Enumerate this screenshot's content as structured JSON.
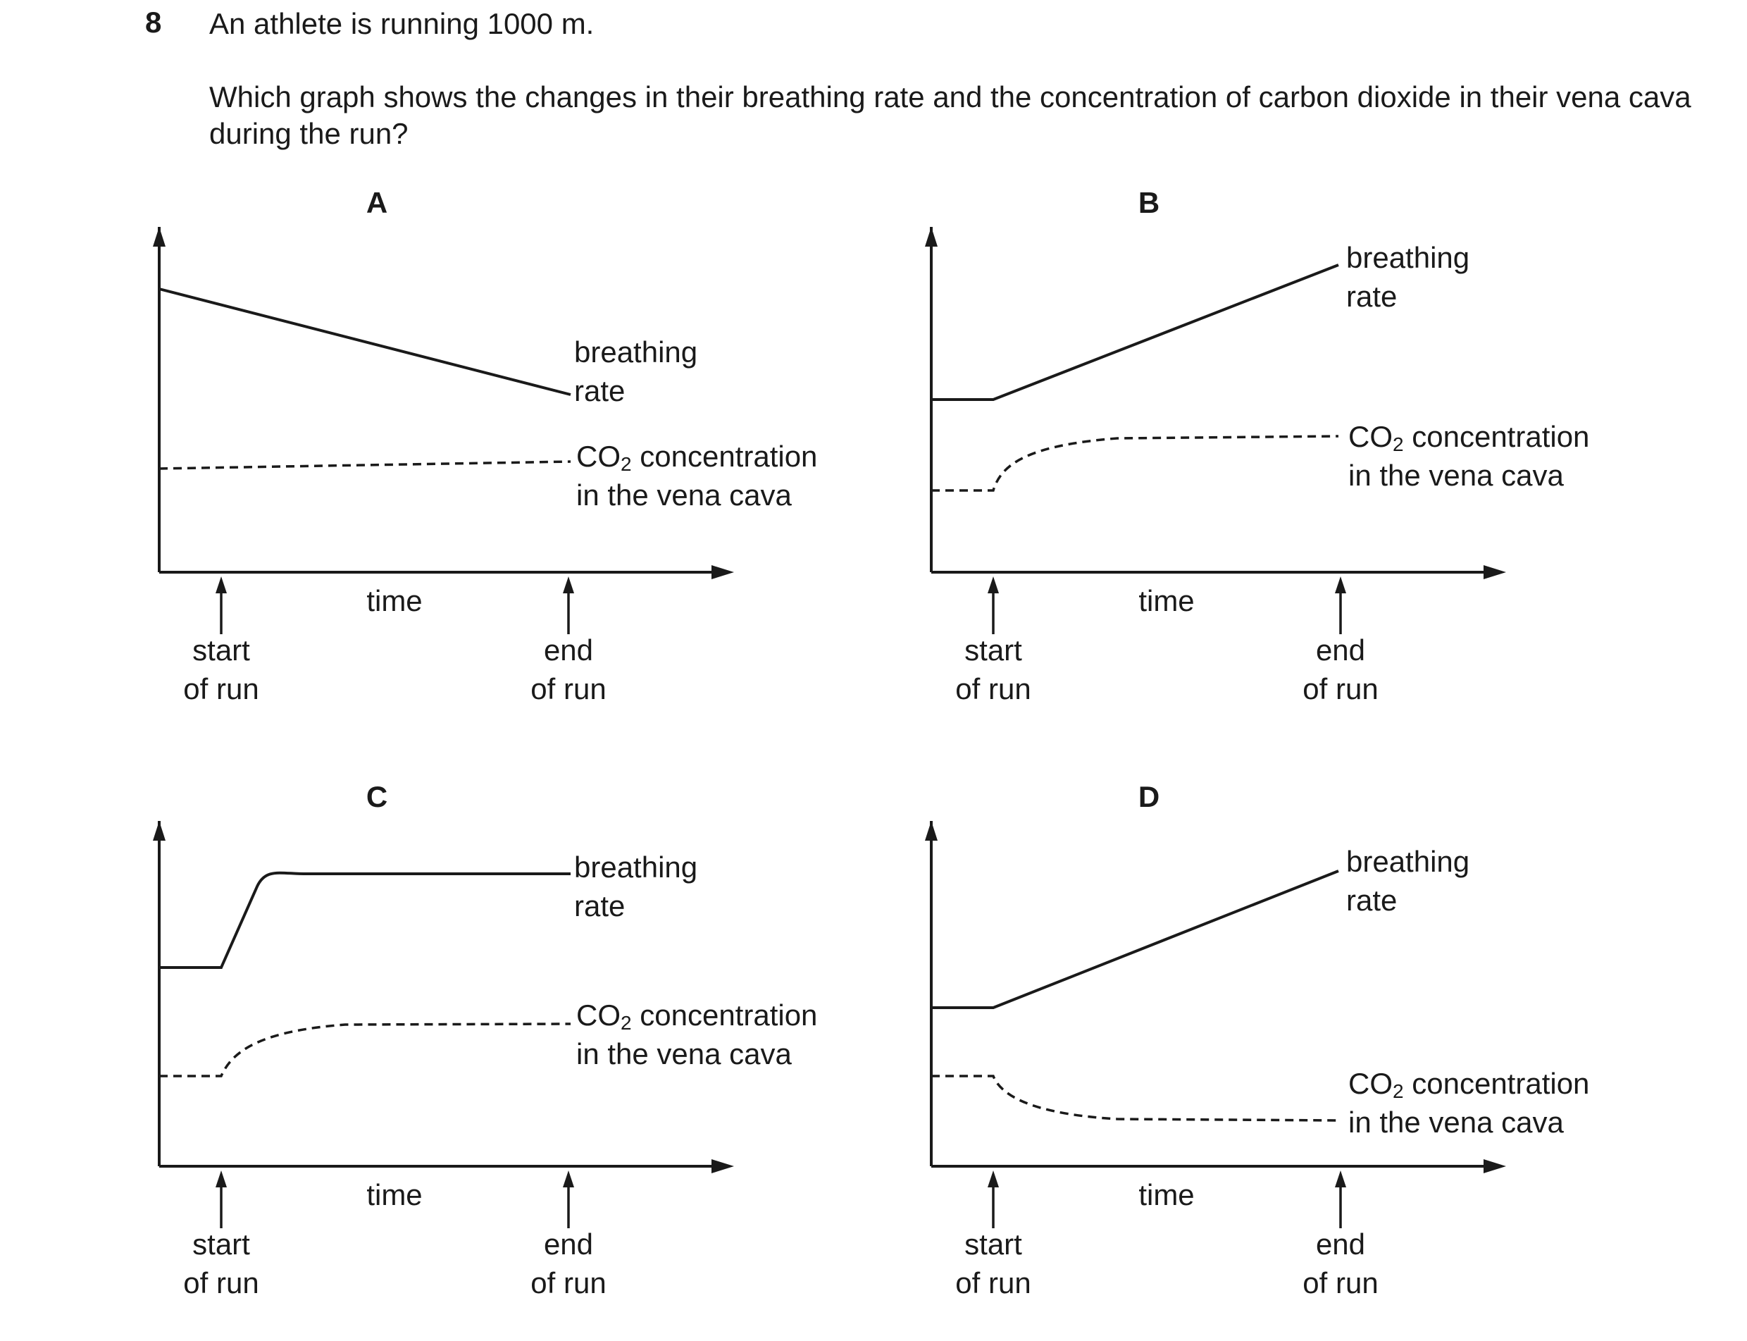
{
  "question": {
    "number": "8",
    "line1": "An athlete is running 1000 m.",
    "line2": "Which graph shows the changes in their breathing rate and the concentration of carbon dioxide in their vena cava during the run?"
  },
  "labels": {
    "time": "time",
    "start_1": "start",
    "start_2": "of run",
    "end_1": "end",
    "end_2": "of run",
    "breathing_1": "breathing",
    "breathing_2": "rate",
    "co2_prefix": "CO",
    "co2_sub": "2",
    "co2_suffix": " concentration",
    "co2_line2": "in the vena cava"
  },
  "chart_data": [
    {
      "type": "line",
      "option": "A",
      "series": [
        {
          "name": "breathing rate",
          "style": "solid",
          "trend": "decreasing steadily from start to end"
        },
        {
          "name": "CO2 concentration in the vena cava",
          "style": "dashed",
          "trend": "constant"
        }
      ]
    },
    {
      "type": "line",
      "option": "B",
      "series": [
        {
          "name": "breathing rate",
          "style": "solid",
          "trend": "constant before start of run, then increasing steadily"
        },
        {
          "name": "CO2 concentration in the vena cava",
          "style": "dashed",
          "trend": "constant before start of run, then rising and levelling off at a higher value"
        }
      ]
    },
    {
      "type": "line",
      "option": "C",
      "series": [
        {
          "name": "breathing rate",
          "style": "solid",
          "trend": "constant before start of run, then rising quickly and levelling off"
        },
        {
          "name": "CO2 concentration in the vena cava",
          "style": "dashed",
          "trend": "constant before start of run, then rising and levelling off at a higher value"
        }
      ]
    },
    {
      "type": "line",
      "option": "D",
      "series": [
        {
          "name": "breathing rate",
          "style": "solid",
          "trend": "constant before start of run, then increasing steadily"
        },
        {
          "name": "CO2 concentration in the vena cava",
          "style": "dashed",
          "trend": "constant before start of run, then falling and levelling off at a lower value"
        }
      ]
    }
  ]
}
